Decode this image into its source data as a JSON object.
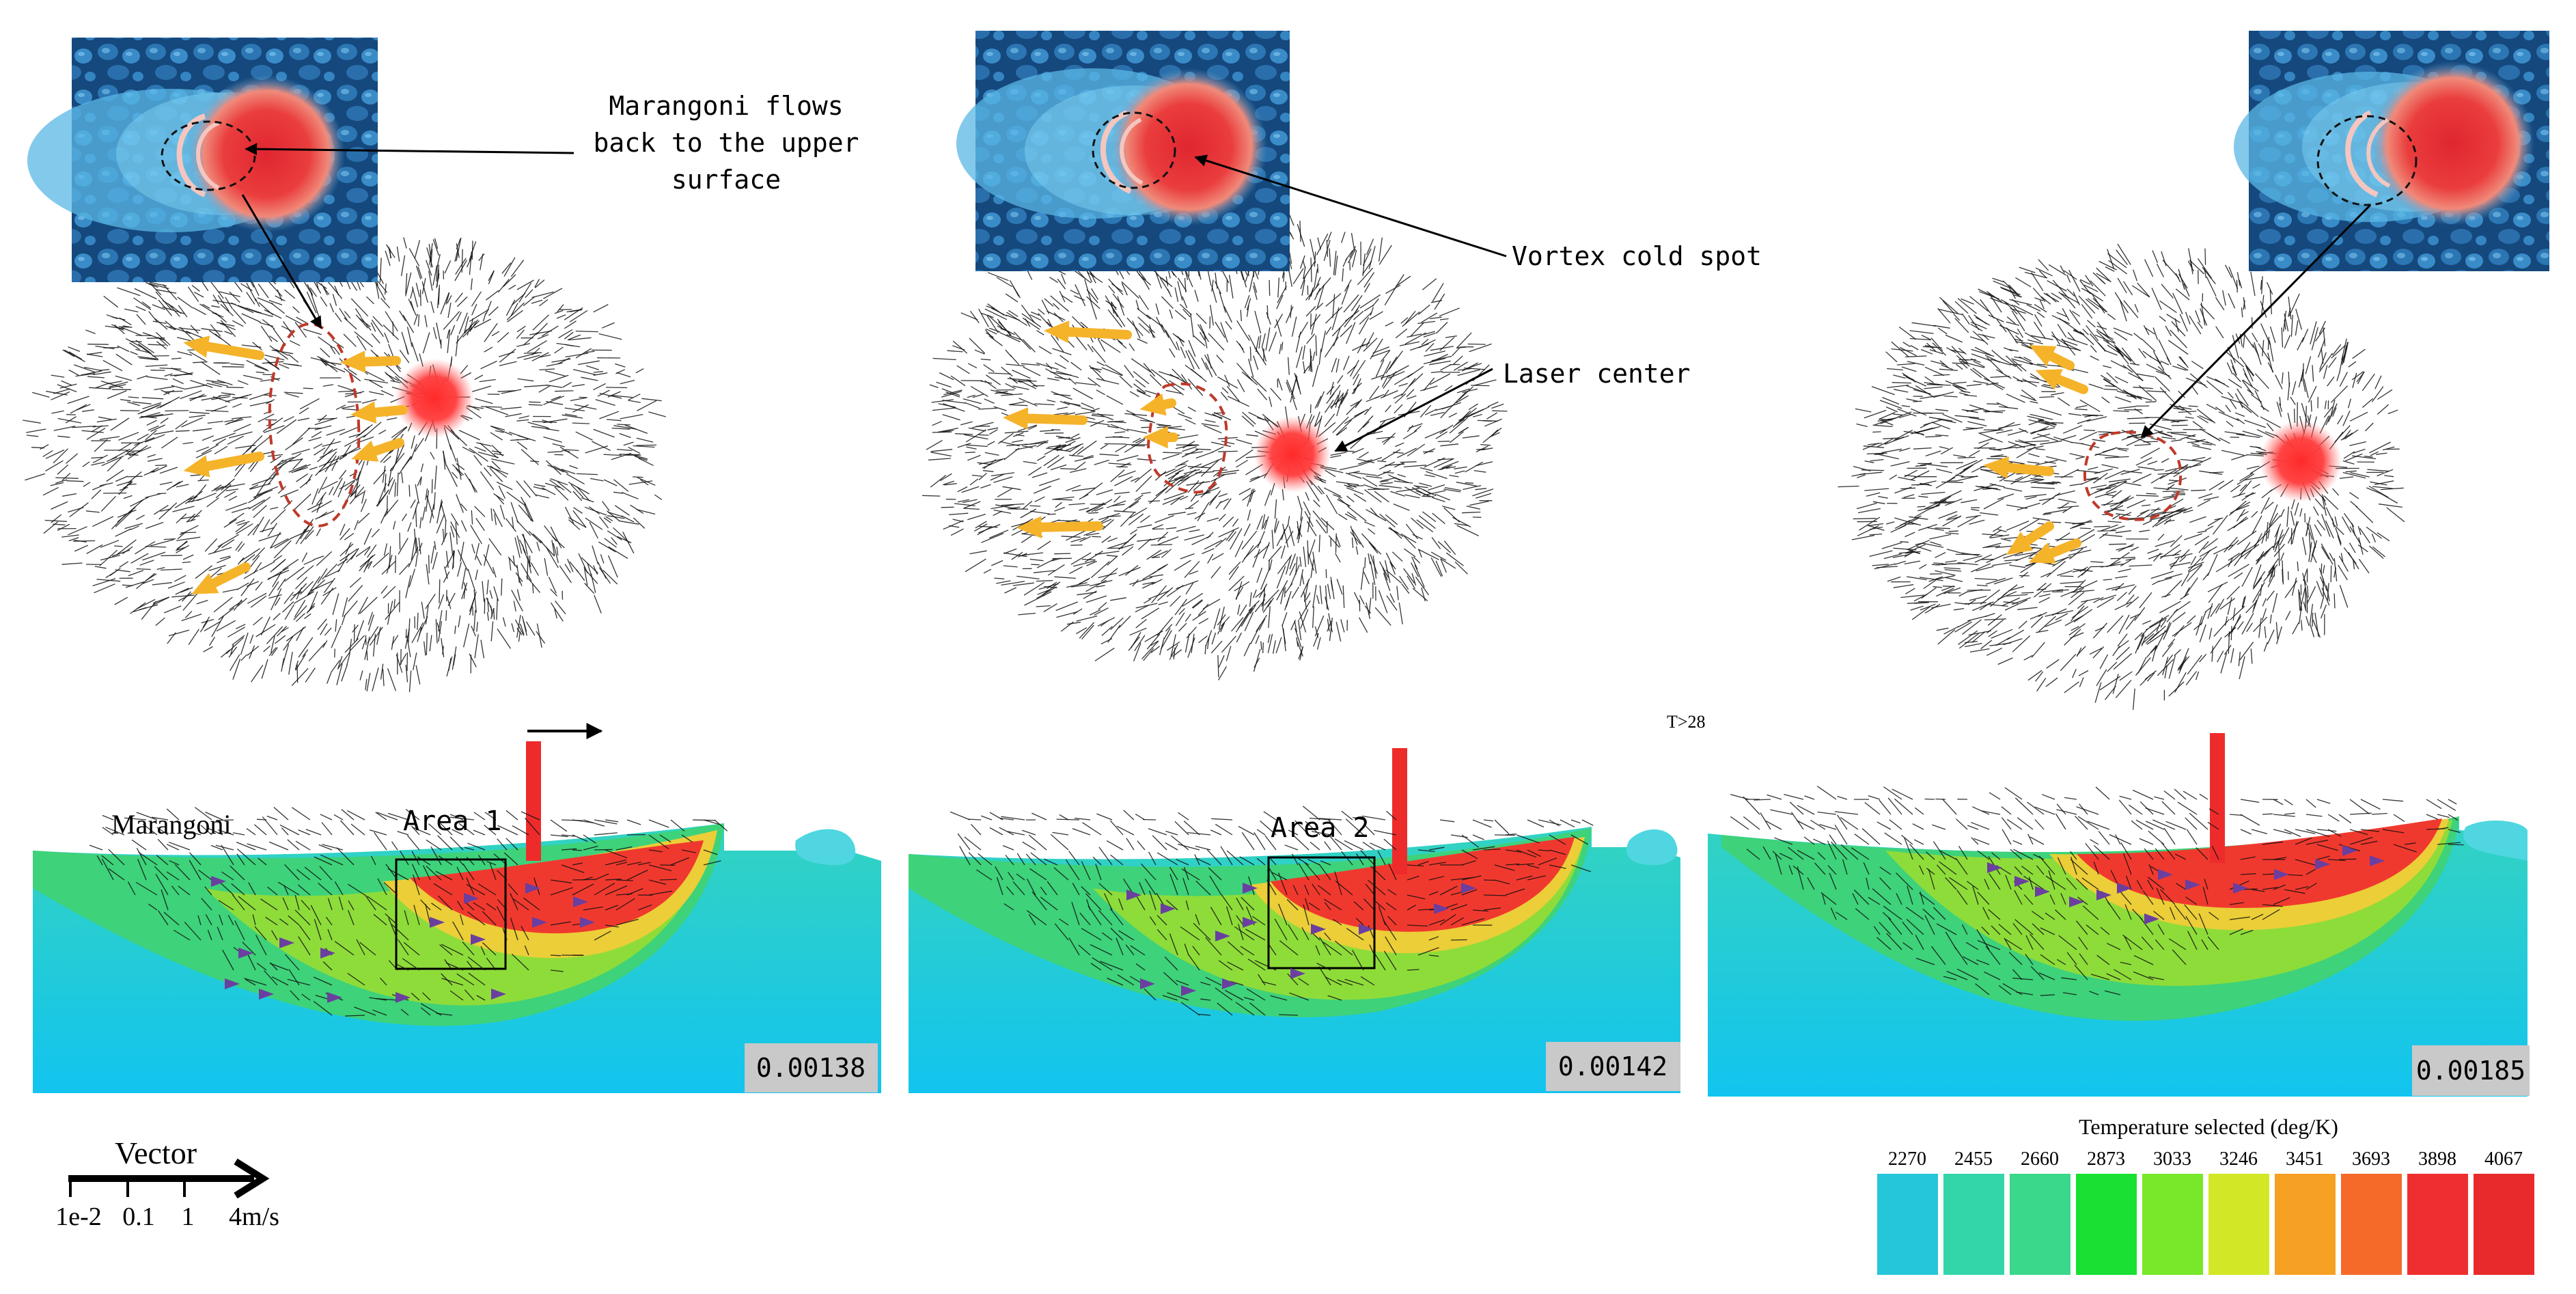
{
  "annotations": {
    "marangoni_flows": [
      "Marangoni flows",
      "back to the upper",
      "surface"
    ],
    "vortex_cold_spot": "Vortex cold spot",
    "laser_center": "Laser center",
    "marangoni": "Marangoni",
    "area1": "Area 1",
    "area2": "Area 2",
    "small_marker": "T>28"
  },
  "timestamps": [
    "0.00138",
    "0.00142",
    "0.00185"
  ],
  "vector_legend": {
    "title": "Vector",
    "ticks": [
      "1e-2",
      "0.1",
      "1",
      "4m/s"
    ]
  },
  "temperature_legend": {
    "title": "Temperature selected (deg/K)",
    "values": [
      "2270",
      "2455",
      "2660",
      "2873",
      "3033",
      "3246",
      "3451",
      "3693",
      "3898",
      "4067"
    ],
    "colors": [
      "#26c6da",
      "#33d6a8",
      "#3ad88a",
      "#19e032",
      "#77e82a",
      "#d2e826",
      "#f7a124",
      "#f56a28",
      "#ef2f2f",
      "#e82a2a"
    ]
  },
  "colors": {
    "laser": "#ee2b2b",
    "flow_arrow": "#f5b32a",
    "dash_red": "#c0392b",
    "marker_purple": "#6a3fa0"
  }
}
